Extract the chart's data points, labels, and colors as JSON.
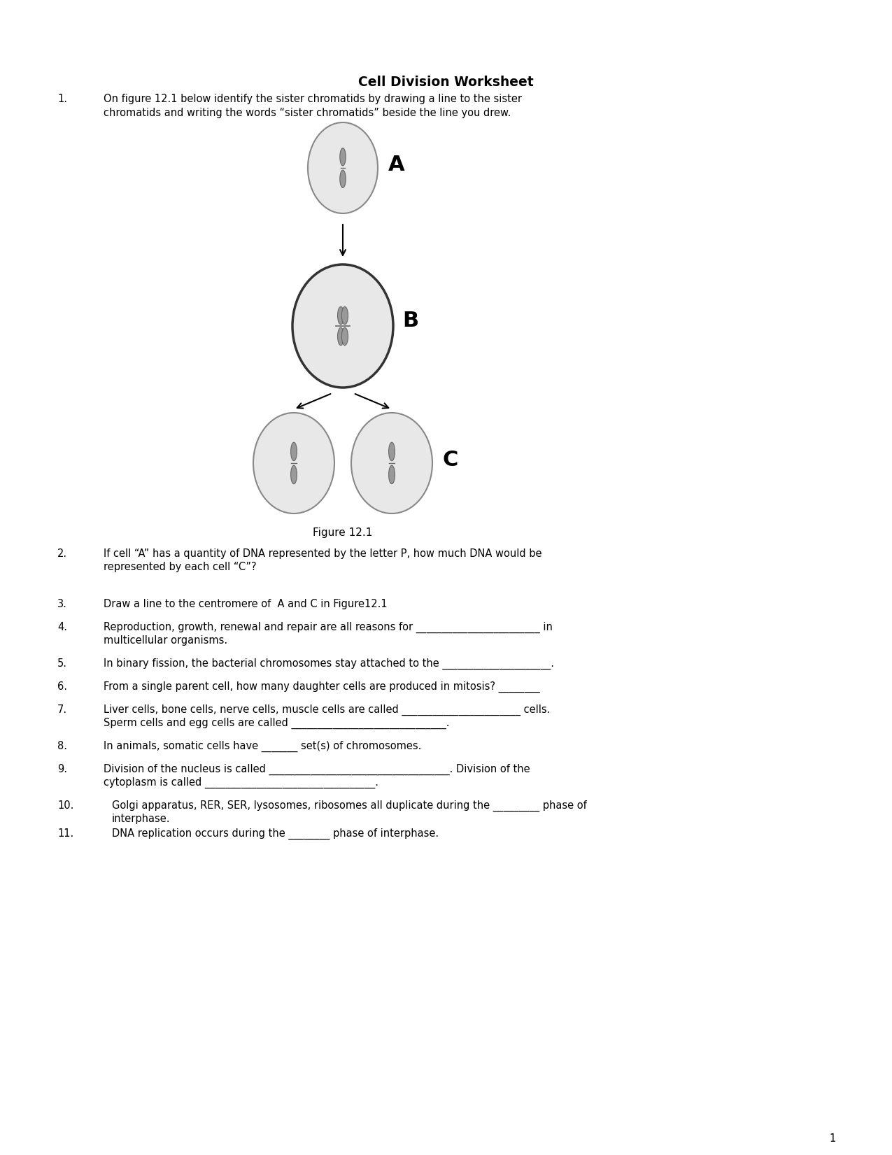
{
  "title": "Cell Division Worksheet",
  "bg_color": "#ffffff",
  "title_fontsize": 13.5,
  "body_fontsize": 10.5,
  "q1_line1": "On figure 12.1 below identify the sister chromatids by drawing a line to the sister",
  "q1_line2": "chromatids and writing the words “sister chromatids” beside the line you drew.",
  "q2_line1": "If cell “A” has a quantity of DNA represented by the letter P, how much DNA would be",
  "q2_line2": "represented by each cell “C”?",
  "q3_line1": "Draw a line to the centromere of  A and C in Figure12.1",
  "q4_line1": "Reproduction, growth, renewal and repair are all reasons for ________________________ in",
  "q4_line2": "multicellular organisms.",
  "q5_line1": "In binary fission, the bacterial chromosomes stay attached to the _____________________.",
  "q6_line1": "From a single parent cell, how many daughter cells are produced in mitosis? ________",
  "q7_line1": "Liver cells, bone cells, nerve cells, muscle cells are called _______________________ cells.",
  "q7_line2": "Sperm cells and egg cells are called ______________________________.",
  "q8_line1": "In animals, somatic cells have _______ set(s) of chromosomes.",
  "q9_line1": "Division of the nucleus is called ___________________________________. Division of the",
  "q9_line2": "cytoplasm is called _________________________________.",
  "q10_line1": "Golgi apparatus, RER, SER, lysosomes, ribosomes all duplicate during the _________ phase of",
  "q10_line2": "interphase.",
  "q11_line1": "DNA replication occurs during the ________ phase of interphase.",
  "figure_caption": "Figure 12.1",
  "cell_A_label": "A",
  "cell_B_label": "B",
  "cell_C_label": "C",
  "page_number": "1",
  "chromosome_color": "#999999",
  "chromosome_edge": "#666666",
  "cell_fill": "#e8e8e8",
  "cell_edge_A": "#888888",
  "cell_edge_B": "#333333",
  "cell_edge_C": "#888888"
}
